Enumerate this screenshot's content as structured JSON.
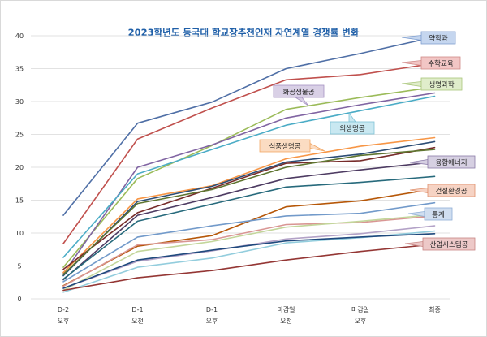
{
  "chart_data": {
    "type": "line",
    "title": "2023학년도 동국대 학교장추천인재 자연계열 경쟁률 변화",
    "xlabel": "",
    "ylabel": "",
    "ylim": [
      0,
      40
    ],
    "yticks": [
      0,
      5,
      10,
      15,
      20,
      25,
      30,
      35,
      40
    ],
    "grid": true,
    "legend": "none",
    "categories": [
      [
        "D-2",
        "오후"
      ],
      [
        "D-1",
        "오전"
      ],
      [
        "D-1",
        "오후"
      ],
      [
        "마감일",
        "오전"
      ],
      [
        "마감일",
        "오후"
      ],
      [
        "최종"
      ]
    ],
    "series": [
      {
        "name": "약학과",
        "color": "#4f6fa6",
        "values": [
          12.7,
          26.7,
          29.9,
          35.0,
          37.3,
          39.8
        ]
      },
      {
        "name": "수학교육",
        "color": "#c0504d",
        "values": [
          8.4,
          24.3,
          29.0,
          33.3,
          34.1,
          35.8
        ]
      },
      {
        "name": "생명과학",
        "color": "#9bbb59",
        "values": [
          4.8,
          18.3,
          23.3,
          28.8,
          30.6,
          32.2
        ]
      },
      {
        "name": "화공생물공",
        "color": "#8064a2",
        "values": [
          3.8,
          20.0,
          23.4,
          27.5,
          29.5,
          31.3
        ]
      },
      {
        "name": "의생명공",
        "color": "#4bacc6",
        "values": [
          6.3,
          19.0,
          22.7,
          26.4,
          28.6,
          30.8
        ]
      },
      {
        "name": "식품생명공",
        "color": "#f79646",
        "values": [
          4.0,
          15.2,
          17.2,
          21.3,
          23.2,
          24.5
        ]
      },
      {
        "name": "",
        "color": "#2c4d75",
        "values": [
          3.5,
          14.8,
          17.1,
          20.8,
          22.0,
          23.9
        ]
      },
      {
        "name": "",
        "color": "#772c2a",
        "values": [
          4.5,
          13.1,
          16.8,
          20.6,
          21.0,
          23.0
        ]
      },
      {
        "name": "",
        "color": "#5f7530",
        "values": [
          3.7,
          14.5,
          16.6,
          20.0,
          21.8,
          22.7
        ]
      },
      {
        "name": "융합에너지",
        "color": "#4d3b62",
        "values": [
          2.9,
          12.7,
          15.4,
          18.3,
          19.6,
          20.8
        ]
      },
      {
        "name": "",
        "color": "#276a7c",
        "values": [
          3.0,
          11.8,
          14.4,
          17.0,
          17.7,
          18.6
        ]
      },
      {
        "name": "건설환경공",
        "color": "#b65708",
        "values": [
          2.0,
          8.0,
          9.6,
          14.0,
          14.9,
          16.7
        ]
      },
      {
        "name": "통계",
        "color": "#729aca",
        "values": [
          2.6,
          9.4,
          11.1,
          12.6,
          13.0,
          14.6
        ]
      },
      {
        "name": "",
        "color": "#d99694",
        "values": [
          1.9,
          8.2,
          9.0,
          11.3,
          11.6,
          12.6
        ]
      },
      {
        "name": "",
        "color": "#c3d69b",
        "values": [
          1.3,
          7.2,
          8.7,
          10.9,
          11.8,
          12.8
        ]
      },
      {
        "name": "",
        "color": "#b3a2c7",
        "values": [
          1.6,
          5.7,
          7.3,
          9.1,
          9.9,
          11.1
        ]
      },
      {
        "name": "",
        "color": "#93cddd",
        "values": [
          1.0,
          4.8,
          6.2,
          8.5,
          9.3,
          10.3
        ]
      },
      {
        "name": "",
        "color": "#1f497d",
        "values": [
          1.6,
          5.9,
          7.4,
          8.8,
          9.4,
          9.9
        ]
      },
      {
        "name": "산업시스템공",
        "color": "#943634",
        "values": [
          1.3,
          3.2,
          4.3,
          5.9,
          7.2,
          8.3
        ]
      }
    ],
    "callouts": [
      {
        "label": "약학과",
        "series": "약학과",
        "bg": "#c5d6ef",
        "border": "#7f9fd0"
      },
      {
        "label": "수학교육",
        "series": "수학교육",
        "bg": "#f2c6c5",
        "border": "#d08a88"
      },
      {
        "label": "생명과학",
        "series": "생명과학",
        "bg": "#e0edcb",
        "border": "#a9c57a"
      },
      {
        "label": "화공생물공",
        "series": "화공생물공",
        "bg": "#d9d0e6",
        "border": "#a692c2"
      },
      {
        "label": "의생명공",
        "series": "의생명공",
        "bg": "#c9e8f1",
        "border": "#7fc2d6"
      },
      {
        "label": "식품생명공",
        "series": "식품생명공",
        "bg": "#fbdcc2",
        "border": "#f2a765"
      },
      {
        "label": "융합에너지",
        "series": "융합에너지",
        "bg": "#d6d0e2",
        "border": "#8b7ba8"
      },
      {
        "label": "건설환경공",
        "series": "건설환경공",
        "bg": "#f6d3c4",
        "border": "#e0916d"
      },
      {
        "label": "통계",
        "series": "통계",
        "bg": "#d0def0",
        "border": "#8eaed6"
      },
      {
        "label": "산업시스템공",
        "series": "산업시스템공",
        "bg": "#edc9c8",
        "border": "#c88684"
      }
    ]
  }
}
